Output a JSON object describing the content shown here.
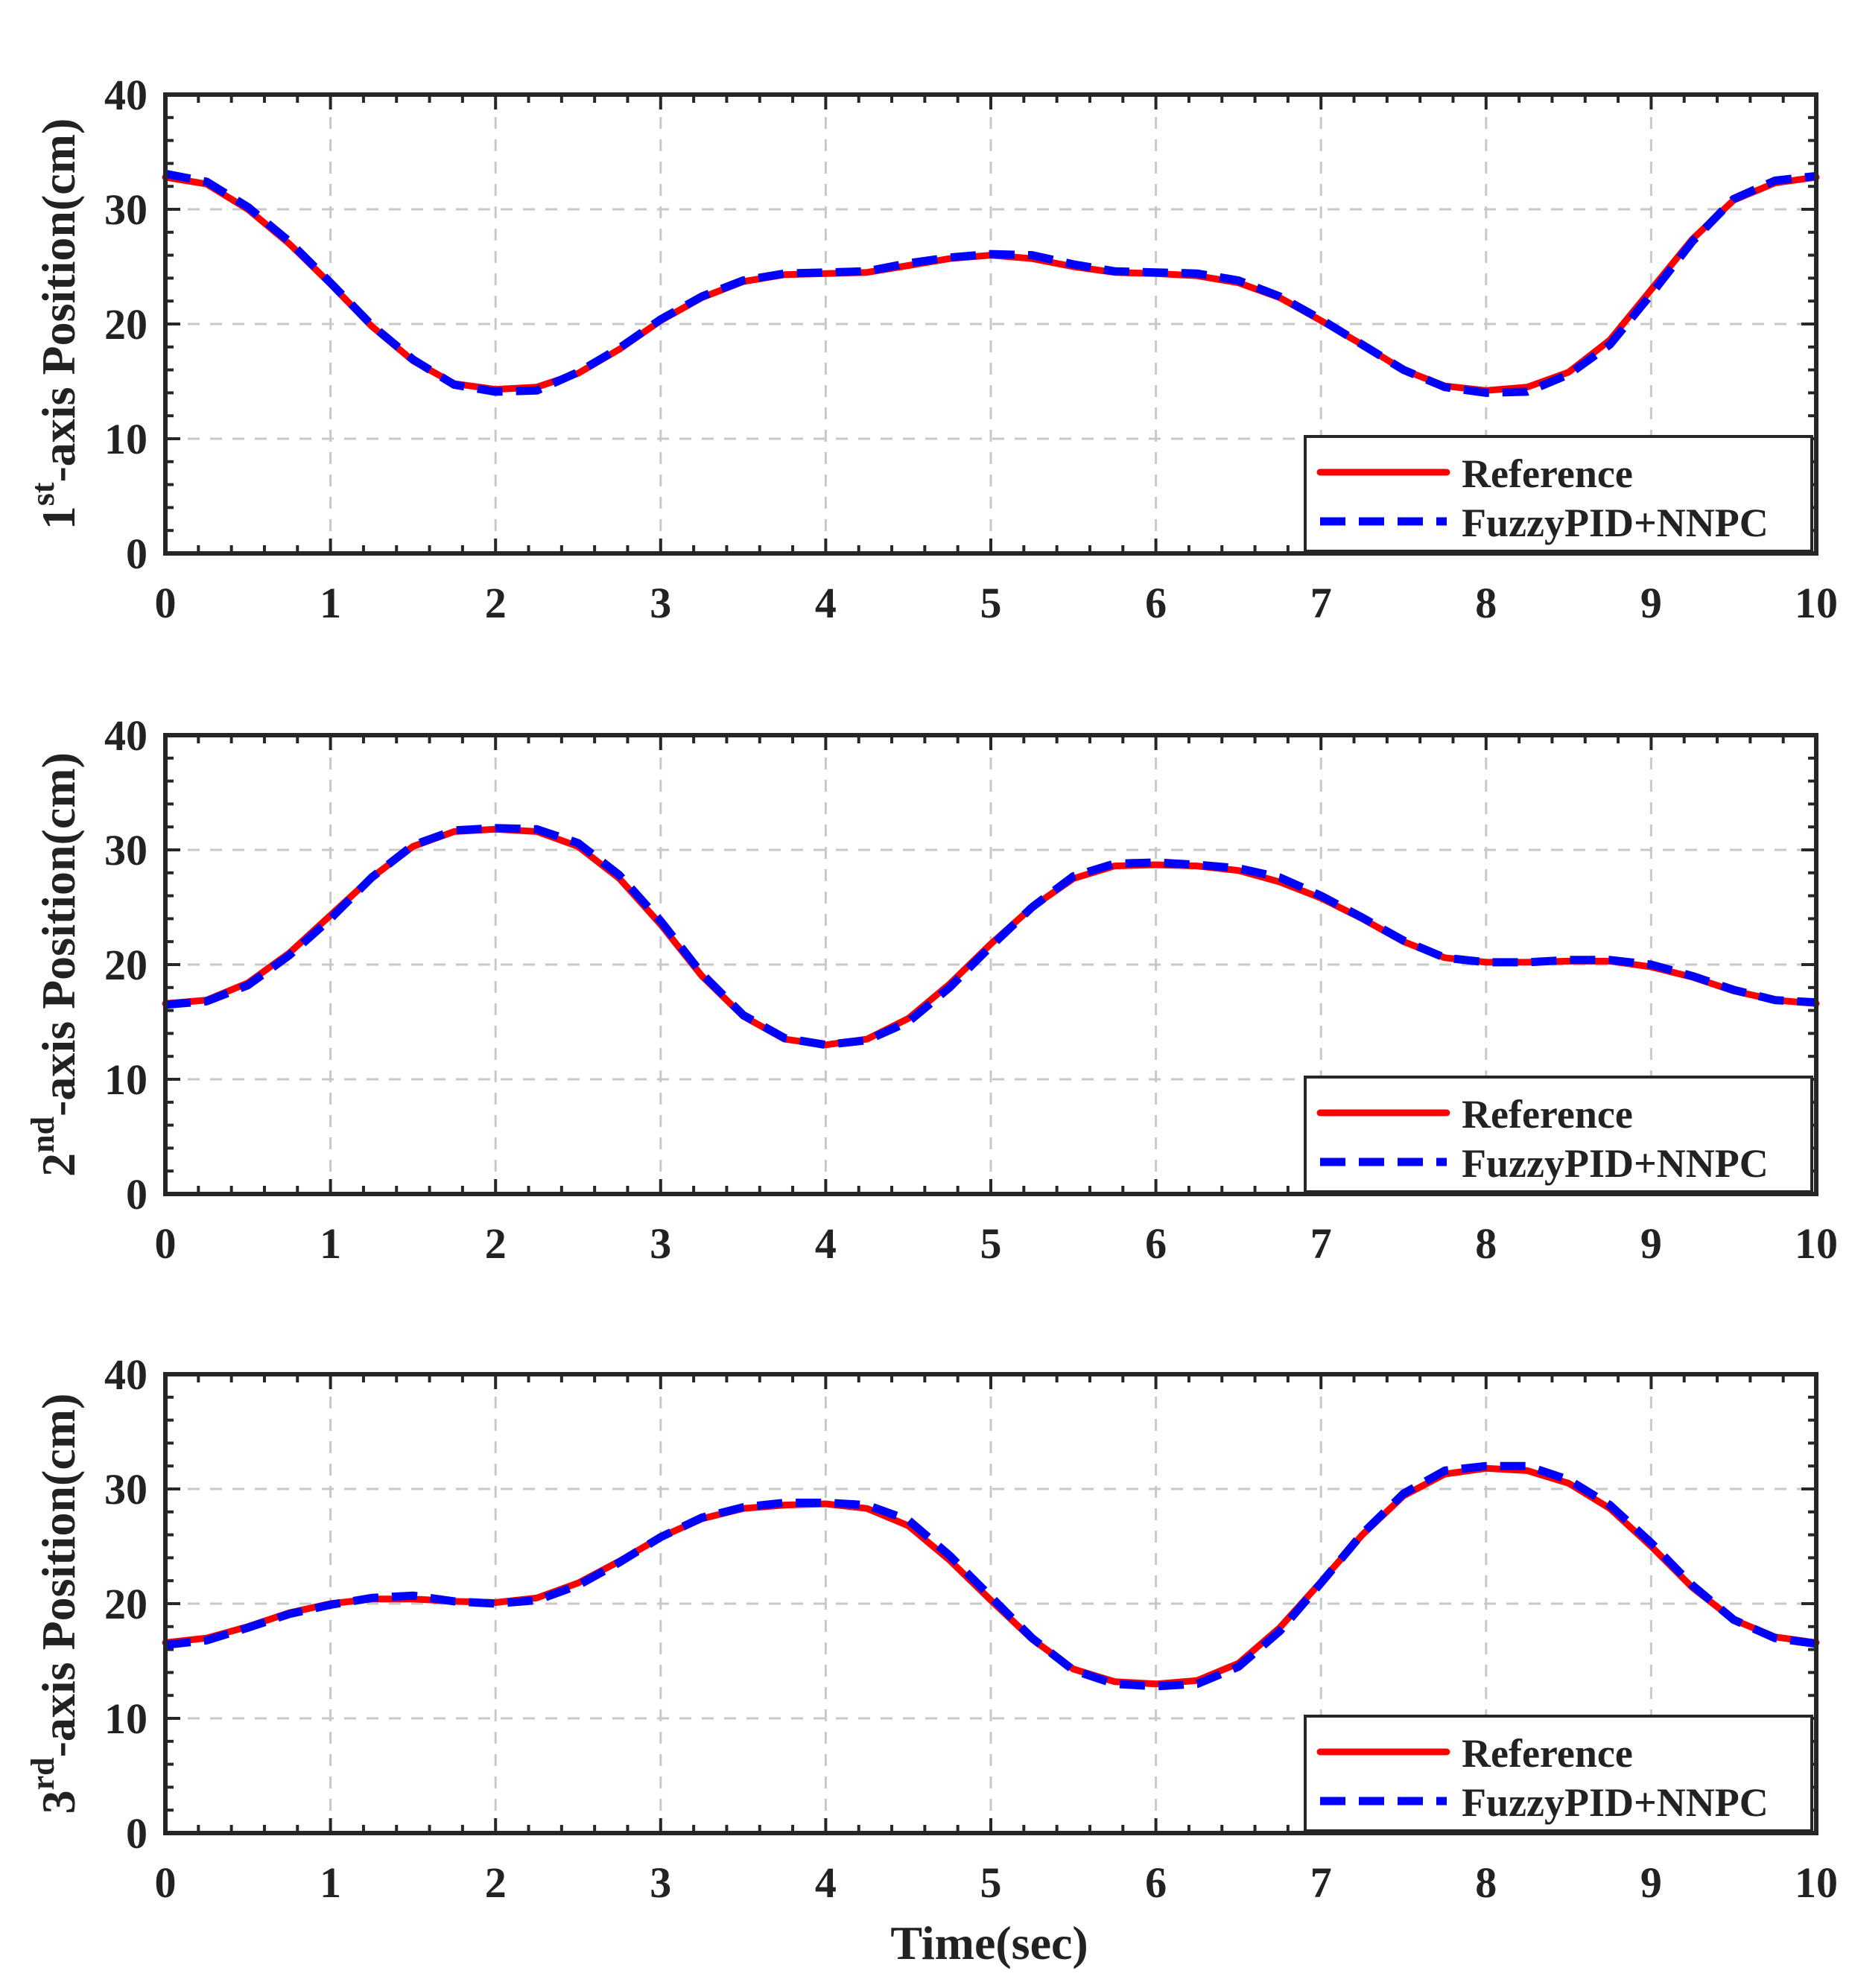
{
  "figure": {
    "xlabel": "Time(sec)"
  },
  "colors": {
    "reference": "#ff0000",
    "controller": "#0000ff",
    "axis": "#262626",
    "grid": "#c8c8c8"
  },
  "chart_data": [
    {
      "type": "line",
      "ylabel_base": "1",
      "ylabel_sup": "st",
      "ylabel_rest": "-axis Position(cm)",
      "xlim": [
        0,
        10
      ],
      "ylim": [
        0,
        40
      ],
      "xticks": [
        "0",
        "1",
        "2",
        "3",
        "4",
        "5",
        "6",
        "7",
        "8",
        "9",
        "10"
      ],
      "yticks": [
        "0",
        "10",
        "20",
        "30",
        "40"
      ],
      "legend": [
        "Reference",
        "FuzzyPID+NNPC"
      ],
      "legend_position": "bottom-right",
      "grid": true,
      "series": [
        {
          "name": "Reference",
          "x": [
            0,
            0.25,
            0.5,
            0.75,
            1,
            1.25,
            1.5,
            1.75,
            2,
            2.25,
            2.5,
            2.75,
            3,
            3.25,
            3.5,
            3.75,
            4,
            4.25,
            4.5,
            4.75,
            5,
            5.25,
            5.5,
            5.75,
            6,
            6.25,
            6.5,
            6.75,
            7,
            7.25,
            7.5,
            7.75,
            8,
            8.25,
            8.5,
            8.75,
            9,
            9.25,
            9.5,
            9.75,
            10
          ],
          "y": [
            32.8,
            32.2,
            30.0,
            27.0,
            23.5,
            19.8,
            16.8,
            14.8,
            14.3,
            14.5,
            15.7,
            17.8,
            20.3,
            22.3,
            23.7,
            24.3,
            24.4,
            24.5,
            25.1,
            25.7,
            26.0,
            25.7,
            25.0,
            24.5,
            24.4,
            24.2,
            23.6,
            22.3,
            20.3,
            18.2,
            16.0,
            14.6,
            14.2,
            14.5,
            15.8,
            18.6,
            23.0,
            27.4,
            30.8,
            32.3,
            32.8
          ]
        },
        {
          "name": "FuzzyPID+NNPC",
          "x": [
            0,
            0.25,
            0.5,
            0.75,
            1,
            1.25,
            1.5,
            1.75,
            2,
            2.25,
            2.5,
            2.75,
            3,
            3.25,
            3.5,
            3.75,
            4,
            4.25,
            4.5,
            4.75,
            5,
            5.25,
            5.5,
            5.75,
            6,
            6.25,
            6.5,
            6.75,
            7,
            7.25,
            7.5,
            7.75,
            8,
            8.25,
            8.5,
            8.75,
            9,
            9.25,
            9.5,
            9.75,
            10
          ],
          "y": [
            33.1,
            32.4,
            30.2,
            27.2,
            23.6,
            19.9,
            16.9,
            14.7,
            14.1,
            14.2,
            15.8,
            17.9,
            20.4,
            22.4,
            23.8,
            24.4,
            24.5,
            24.6,
            25.3,
            25.8,
            26.1,
            26.0,
            25.2,
            24.6,
            24.5,
            24.4,
            23.8,
            22.4,
            20.4,
            18.2,
            16.0,
            14.5,
            14.0,
            14.1,
            15.6,
            18.2,
            22.6,
            27.2,
            30.9,
            32.5,
            32.9
          ]
        }
      ]
    },
    {
      "type": "line",
      "ylabel_base": "2",
      "ylabel_sup": "nd",
      "ylabel_rest": "-axis Position(cm)",
      "xlim": [
        0,
        10
      ],
      "ylim": [
        0,
        40
      ],
      "xticks": [
        "0",
        "1",
        "2",
        "3",
        "4",
        "5",
        "6",
        "7",
        "8",
        "9",
        "10"
      ],
      "yticks": [
        "0",
        "10",
        "20",
        "30",
        "40"
      ],
      "legend": [
        "Reference",
        "FuzzyPID+NNPC"
      ],
      "legend_position": "bottom-right",
      "grid": true,
      "series": [
        {
          "name": "Reference",
          "x": [
            0,
            0.25,
            0.5,
            0.75,
            1,
            1.25,
            1.5,
            1.75,
            2,
            2.25,
            2.5,
            2.75,
            3,
            3.25,
            3.5,
            3.75,
            4,
            4.25,
            4.5,
            4.75,
            5,
            5.25,
            5.5,
            5.75,
            6,
            6.25,
            6.5,
            6.75,
            7,
            7.25,
            7.5,
            7.75,
            8,
            8.25,
            8.5,
            8.75,
            9,
            9.25,
            9.5,
            9.75,
            10
          ],
          "y": [
            16.6,
            16.9,
            18.4,
            21.0,
            24.3,
            27.6,
            30.3,
            31.6,
            31.8,
            31.6,
            30.3,
            27.5,
            23.5,
            19.0,
            15.5,
            13.5,
            13.0,
            13.5,
            15.3,
            18.3,
            21.8,
            25.0,
            27.5,
            28.6,
            28.7,
            28.6,
            28.2,
            27.2,
            25.8,
            24.0,
            22.0,
            20.6,
            20.2,
            20.2,
            20.3,
            20.3,
            19.8,
            18.9,
            17.7,
            16.9,
            16.6
          ]
        },
        {
          "name": "FuzzyPID+NNPC",
          "x": [
            0,
            0.25,
            0.5,
            0.75,
            1,
            1.25,
            1.5,
            1.75,
            2,
            2.25,
            2.5,
            2.75,
            3,
            3.25,
            3.5,
            3.75,
            4,
            4.25,
            4.5,
            4.75,
            5,
            5.25,
            5.5,
            5.75,
            6,
            6.25,
            6.5,
            6.75,
            7,
            7.25,
            7.5,
            7.75,
            8,
            8.25,
            8.5,
            8.75,
            9,
            9.25,
            9.5,
            9.75,
            10
          ],
          "y": [
            16.5,
            16.8,
            18.2,
            20.8,
            24.0,
            27.6,
            30.4,
            31.7,
            31.9,
            31.8,
            30.6,
            27.8,
            23.8,
            19.2,
            15.6,
            13.6,
            13.0,
            13.4,
            15.0,
            18.0,
            21.6,
            25.0,
            27.7,
            28.8,
            28.9,
            28.7,
            28.4,
            27.6,
            26.0,
            24.1,
            22.1,
            20.6,
            20.2,
            20.2,
            20.4,
            20.4,
            20.0,
            19.0,
            17.8,
            16.9,
            16.7
          ]
        }
      ]
    },
    {
      "type": "line",
      "ylabel_base": "3",
      "ylabel_sup": "rd",
      "ylabel_rest": "-axis Position(cm)",
      "xlim": [
        0,
        10
      ],
      "ylim": [
        0,
        40
      ],
      "xticks": [
        "0",
        "1",
        "2",
        "3",
        "4",
        "5",
        "6",
        "7",
        "8",
        "9",
        "10"
      ],
      "yticks": [
        "0",
        "10",
        "20",
        "30",
        "40"
      ],
      "legend": [
        "Reference",
        "FuzzyPID+NNPC"
      ],
      "legend_position": "bottom-right",
      "grid": true,
      "series": [
        {
          "name": "Reference",
          "x": [
            0,
            0.25,
            0.5,
            0.75,
            1,
            1.25,
            1.5,
            1.75,
            2,
            2.25,
            2.5,
            2.75,
            3,
            3.25,
            3.5,
            3.75,
            4,
            4.25,
            4.5,
            4.75,
            5,
            5.25,
            5.5,
            5.75,
            6,
            6.25,
            6.5,
            6.75,
            7,
            7.25,
            7.5,
            7.75,
            8,
            8.25,
            8.5,
            8.75,
            9,
            9.25,
            9.5,
            9.75,
            10
          ],
          "y": [
            16.6,
            17.0,
            18.0,
            19.2,
            20.0,
            20.4,
            20.4,
            20.2,
            20.1,
            20.5,
            21.8,
            23.7,
            25.8,
            27.4,
            28.3,
            28.6,
            28.7,
            28.3,
            26.8,
            23.8,
            20.3,
            16.9,
            14.3,
            13.2,
            13.0,
            13.3,
            14.8,
            17.9,
            21.9,
            26.0,
            29.4,
            31.3,
            31.8,
            31.6,
            30.5,
            28.3,
            25.0,
            21.4,
            18.6,
            17.1,
            16.6
          ]
        },
        {
          "name": "FuzzyPID+NNPC",
          "x": [
            0,
            0.25,
            0.5,
            0.75,
            1,
            1.25,
            1.5,
            1.75,
            2,
            2.25,
            2.5,
            2.75,
            3,
            3.25,
            3.5,
            3.75,
            4,
            4.25,
            4.5,
            4.75,
            5,
            5.25,
            5.5,
            5.75,
            6,
            6.25,
            6.5,
            6.75,
            7,
            7.25,
            7.5,
            7.75,
            8,
            8.25,
            8.5,
            8.75,
            9,
            9.25,
            9.5,
            9.75,
            10
          ],
          "y": [
            16.4,
            16.8,
            17.9,
            19.1,
            19.9,
            20.5,
            20.7,
            20.2,
            20.0,
            20.3,
            21.6,
            23.6,
            25.8,
            27.5,
            28.4,
            28.8,
            28.8,
            28.6,
            27.3,
            24.2,
            20.6,
            17.0,
            14.2,
            13.0,
            12.8,
            13.0,
            14.5,
            17.6,
            21.8,
            26.1,
            29.6,
            31.6,
            32.0,
            32.0,
            30.8,
            28.6,
            25.3,
            21.6,
            18.6,
            17.0,
            16.5
          ]
        }
      ]
    }
  ]
}
